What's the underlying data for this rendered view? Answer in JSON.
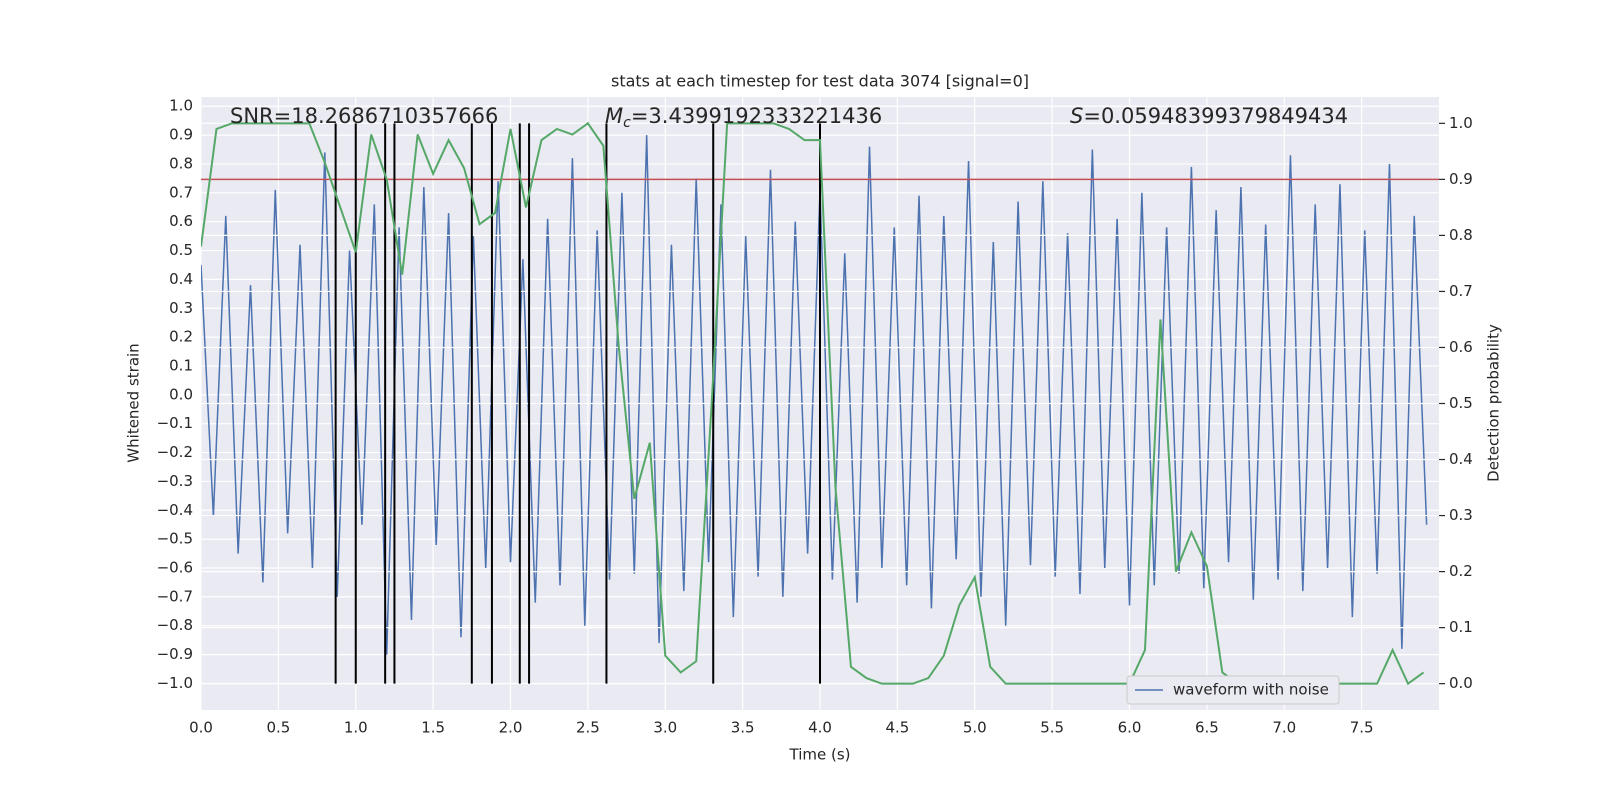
{
  "chart_data": {
    "type": "line",
    "title": "stats at each timestep for test data 3074 [signal=0]",
    "xlabel": "Time (s)",
    "ylabel": "Whitened strain",
    "y2label": "Detection probability",
    "annotations": [
      {
        "text": "SNR=18.2686710357666"
      },
      {
        "symbol": "M",
        "subscript": "c",
        "text": "=3.4399192333221436"
      },
      {
        "symbol": "S",
        "text": "=0.05948399379849434"
      }
    ],
    "xlim": [
      0,
      8.0
    ],
    "ylim": [
      -1.092,
      1.032
    ],
    "y2lim": [
      -0.047,
      1.047
    ],
    "xticks": [
      {
        "value": 0,
        "label": "0.0"
      },
      0.5,
      {
        "value": 1,
        "label": "1.0"
      },
      1.5,
      {
        "value": 2,
        "label": "2.0"
      },
      2.5,
      {
        "value": 3,
        "label": "3.0"
      },
      3.5,
      {
        "value": 4,
        "label": "4.0"
      },
      4.5,
      {
        "value": 5,
        "label": "5.0"
      },
      5.5,
      {
        "value": 6,
        "label": "6.0"
      },
      6.5,
      {
        "value": 7,
        "label": "7.0"
      },
      7.5
    ],
    "yticks": [
      {
        "value": -1,
        "label": "−1.0"
      },
      {
        "value": -0.9,
        "label": "−0.9"
      },
      {
        "value": -0.8,
        "label": "−0.8"
      },
      {
        "value": -0.7,
        "label": "−0.7"
      },
      {
        "value": -0.6,
        "label": "−0.6"
      },
      {
        "value": -0.5,
        "label": "−0.5"
      },
      {
        "value": -0.4,
        "label": "−0.4"
      },
      {
        "value": -0.3,
        "label": "−0.3"
      },
      {
        "value": -0.2,
        "label": "−0.2"
      },
      {
        "value": -0.1,
        "label": "−0.1"
      },
      {
        "value": 0,
        "label": "0.0"
      },
      0.1,
      0.2,
      0.3,
      0.4,
      0.5,
      0.6,
      0.7,
      0.8,
      0.9,
      {
        "value": 1,
        "label": "1.0"
      }
    ],
    "y2ticks": [
      {
        "value": 0,
        "label": "0.0"
      },
      0.1,
      0.2,
      0.3,
      0.4,
      0.5,
      0.6,
      0.7,
      0.8,
      0.9,
      {
        "value": 1,
        "label": "1.0"
      }
    ],
    "grid": true,
    "legend": "lower right",
    "series": [
      {
        "name": "waveform with noise",
        "color": "#4c72b0",
        "x": [
          0,
          0.08,
          0.16,
          0.24,
          0.32,
          0.4,
          0.48,
          0.56,
          0.64,
          0.72,
          0.8,
          0.88,
          0.96,
          1.04,
          1.12,
          1.2,
          1.28,
          1.36,
          1.44,
          1.52,
          1.6,
          1.68,
          1.76,
          1.84,
          1.92,
          2,
          2.08,
          2.16,
          2.24,
          2.32,
          2.4,
          2.48,
          2.56,
          2.64,
          2.72,
          2.8,
          2.88,
          2.96,
          3.04,
          3.12,
          3.2,
          3.28,
          3.36,
          3.44,
          3.52,
          3.6,
          3.68,
          3.76,
          3.84,
          3.92,
          4,
          4.08,
          4.16,
          4.24,
          4.32,
          4.4,
          4.48,
          4.56,
          4.64,
          4.72,
          4.8,
          4.88,
          4.96,
          5.04,
          5.12,
          5.2,
          5.28,
          5.36,
          5.44,
          5.52,
          5.6,
          5.68,
          5.76,
          5.84,
          5.92,
          6,
          6.08,
          6.16,
          6.24,
          6.32,
          6.4,
          6.48,
          6.56,
          6.64,
          6.72,
          6.8,
          6.88,
          6.96,
          7.04,
          7.12,
          7.2,
          7.28,
          7.36,
          7.44,
          7.52,
          7.6,
          7.68,
          7.76,
          7.84,
          7.92
        ],
        "values": [
          0.45,
          -0.42,
          0.62,
          -0.55,
          0.38,
          -0.65,
          0.71,
          -0.48,
          0.52,
          -0.6,
          0.84,
          -0.7,
          0.5,
          -0.45,
          0.66,
          -0.9,
          0.58,
          -0.78,
          0.72,
          -0.52,
          0.63,
          -0.84,
          0.55,
          -0.6,
          0.74,
          -0.58,
          0.47,
          -0.72,
          0.61,
          -0.66,
          0.82,
          -0.8,
          0.57,
          -0.64,
          0.7,
          -0.62,
          0.9,
          -0.86,
          0.52,
          -0.68,
          0.75,
          -0.58,
          0.66,
          -0.77,
          0.55,
          -0.63,
          0.78,
          -0.7,
          0.6,
          -0.55,
          0.71,
          -0.64,
          0.49,
          -0.72,
          0.86,
          -0.6,
          0.58,
          -0.66,
          0.69,
          -0.74,
          0.62,
          -0.57,
          0.81,
          -0.7,
          0.53,
          -0.8,
          0.67,
          -0.59,
          0.74,
          -0.63,
          0.56,
          -0.69,
          0.85,
          -0.6,
          0.61,
          -0.73,
          0.7,
          -0.66,
          0.58,
          -0.62,
          0.79,
          -0.67,
          0.64,
          -0.58,
          0.72,
          -0.71,
          0.59,
          -0.64,
          0.83,
          -0.68,
          0.66,
          -0.6,
          0.73,
          -0.77,
          0.57,
          -0.62,
          0.8,
          -0.88,
          0.62,
          -0.45
        ]
      },
      {
        "color": "#55a868",
        "axis": "y2",
        "x": [
          0,
          0.1,
          0.2,
          0.3,
          0.4,
          0.5,
          0.6,
          0.7,
          0.8,
          0.9,
          1,
          1.1,
          1.2,
          1.3,
          1.4,
          1.5,
          1.6,
          1.7,
          1.8,
          1.9,
          2,
          2.1,
          2.2,
          2.3,
          2.4,
          2.5,
          2.6,
          2.7,
          2.8,
          2.9,
          3,
          3.1,
          3.2,
          3.3,
          3.4,
          3.5,
          3.6,
          3.7,
          3.8,
          3.9,
          4,
          4.1,
          4.2,
          4.3,
          4.4,
          4.5,
          4.6,
          4.7,
          4.8,
          4.9,
          5,
          5.1,
          5.2,
          5.3,
          5.4,
          5.5,
          5.6,
          5.7,
          5.8,
          5.9,
          6,
          6.1,
          6.2,
          6.3,
          6.4,
          6.5,
          6.6,
          6.7,
          6.8,
          6.9,
          7,
          7.1,
          7.2,
          7.3,
          7.4,
          7.5,
          7.6,
          7.7,
          7.8,
          7.9
        ],
        "values": [
          0.78,
          0.99,
          1.0,
          1.0,
          1.0,
          1.0,
          1.0,
          1.0,
          0.93,
          0.85,
          0.77,
          0.98,
          0.9,
          0.73,
          0.98,
          0.91,
          0.97,
          0.92,
          0.82,
          0.84,
          0.99,
          0.85,
          0.97,
          0.99,
          0.98,
          1.0,
          0.96,
          0.6,
          0.33,
          0.43,
          0.05,
          0.02,
          0.04,
          0.5,
          1.0,
          1.0,
          1.0,
          1.0,
          0.99,
          0.97,
          0.97,
          0.35,
          0.03,
          0.01,
          0.0,
          0.0,
          0.0,
          0.01,
          0.05,
          0.14,
          0.19,
          0.03,
          0.0,
          0.0,
          0.0,
          0.0,
          0.0,
          0.0,
          0.0,
          0.0,
          0.0,
          0.06,
          0.65,
          0.2,
          0.27,
          0.21,
          0.02,
          0.0,
          0.0,
          0.0,
          0.0,
          0.0,
          0.0,
          0.0,
          0.0,
          0.0,
          0.0,
          0.06,
          0.0,
          0.02
        ]
      }
    ],
    "hlines": [
      {
        "value": 0.9,
        "color": "#c44e52",
        "axis": "y2"
      }
    ],
    "vlines": [
      0.87,
      1.0,
      1.19,
      1.25,
      1.75,
      1.88,
      2.06,
      2.12,
      2.62,
      3.31,
      4.0
    ],
    "vline_color": "#000000"
  }
}
